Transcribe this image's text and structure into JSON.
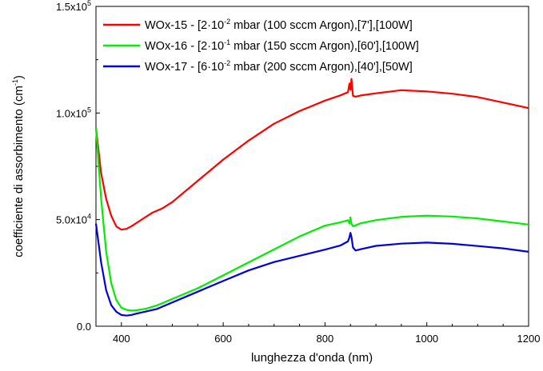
{
  "chart_data": {
    "type": "line",
    "xlabel": "lunghezza d'onda (nm)",
    "ylabel": {
      "main": "coefficiente di assorbimento (cm",
      "sup": "-1",
      "close": ")"
    },
    "xlim": [
      350,
      1200
    ],
    "ylim": [
      0,
      150000
    ],
    "x_ticks": [
      400,
      600,
      800,
      1000,
      1200
    ],
    "x_tick_labels": [
      "400",
      "600",
      "800",
      "1000",
      "1200"
    ],
    "y_ticks": [
      {
        "value": 0,
        "mant": "0.0",
        "exp": ""
      },
      {
        "value": 50000,
        "mant": "5.0x10",
        "exp": "4"
      },
      {
        "value": 100000,
        "mant": "1.0x10",
        "exp": "5"
      },
      {
        "value": 150000,
        "mant": "1.5x10",
        "exp": "5"
      }
    ],
    "grid": false,
    "legend_position": "top-left",
    "series": [
      {
        "name_parts": {
          "a": "WOx-15 - [2·10",
          "sup": "-2",
          "b": " mbar (100 sccm Argon),[7'],[100W]"
        },
        "color": "#ff0000",
        "x": [
          350,
          360,
          370,
          380,
          390,
          400,
          410,
          420,
          440,
          460,
          480,
          500,
          550,
          600,
          650,
          700,
          750,
          800,
          830,
          845,
          848,
          850,
          852,
          855,
          860,
          870,
          900,
          950,
          1000,
          1050,
          1100,
          1150,
          1200
        ],
        "y": [
          93000,
          72000,
          60000,
          52000,
          47000,
          45500,
          45800,
          47000,
          50000,
          53000,
          55000,
          58000,
          68000,
          78000,
          87000,
          95000,
          101000,
          106000,
          108500,
          110000,
          114000,
          111000,
          116000,
          108000,
          107500,
          108000,
          109000,
          110500,
          110000,
          109000,
          107500,
          105000,
          102500
        ]
      },
      {
        "name_parts": {
          "a": "WOx-16 - [2·10",
          "sup": "-1",
          "b": " mbar (150 sccm Argon),[60'],[100W]"
        },
        "color": "#00ee00",
        "x": [
          350,
          360,
          370,
          380,
          390,
          400,
          410,
          420,
          430,
          440,
          450,
          470,
          500,
          550,
          600,
          650,
          700,
          750,
          800,
          830,
          845,
          848,
          850,
          852,
          855,
          860,
          870,
          900,
          950,
          1000,
          1050,
          1100,
          1150,
          1200
        ],
        "y": [
          93000,
          60000,
          35000,
          20000,
          12000,
          8500,
          7500,
          7200,
          7500,
          8000,
          8500,
          10000,
          13000,
          18000,
          24000,
          30000,
          36000,
          42000,
          47000,
          48500,
          49500,
          48000,
          51000,
          48000,
          47000,
          47500,
          48500,
          50000,
          51500,
          52000,
          51500,
          50500,
          49000,
          47500
        ]
      },
      {
        "name_parts": {
          "a": "WOx-17 - [6·10",
          "sup": "-2",
          "b": " mbar (200 sccm Argon),[40'],[50W]"
        },
        "color": "#0000dd",
        "x": [
          350,
          360,
          370,
          380,
          390,
          400,
          410,
          420,
          430,
          450,
          470,
          500,
          550,
          600,
          650,
          700,
          750,
          800,
          830,
          845,
          848,
          850,
          852,
          855,
          860,
          870,
          900,
          950,
          1000,
          1050,
          1100,
          1150,
          1200
        ],
        "y": [
          48000,
          30000,
          17000,
          10000,
          7000,
          5500,
          5200,
          5500,
          6000,
          7000,
          8000,
          11000,
          16000,
          21000,
          26000,
          30000,
          33000,
          36000,
          38000,
          40000,
          42000,
          44000,
          42000,
          37000,
          35500,
          36000,
          37500,
          38500,
          39000,
          38500,
          37500,
          36500,
          35000
        ]
      }
    ]
  }
}
